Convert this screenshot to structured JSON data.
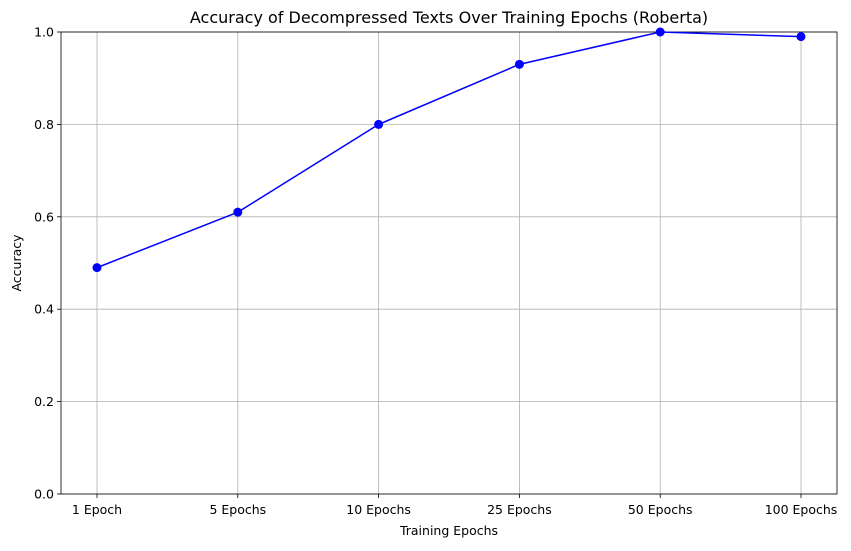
{
  "chart_data": {
    "type": "line",
    "title": "Accuracy of Decompressed Texts Over Training Epochs (Roberta)",
    "xlabel": "Training Epochs",
    "ylabel": "Accuracy",
    "categories": [
      "1 Epoch",
      "5 Epochs",
      "10 Epochs",
      "25 Epochs",
      "50 Epochs",
      "100 Epochs"
    ],
    "series": [
      {
        "values": [
          0.49,
          0.61,
          0.8,
          0.93,
          1.0,
          0.99
        ],
        "color": "#0000ff",
        "marker": "circle"
      }
    ],
    "ylim": [
      0,
      1.0
    ],
    "yticks": [
      "0.0",
      "0.2",
      "0.4",
      "0.6",
      "0.8",
      "1.0"
    ],
    "grid": true,
    "legend": "none"
  }
}
